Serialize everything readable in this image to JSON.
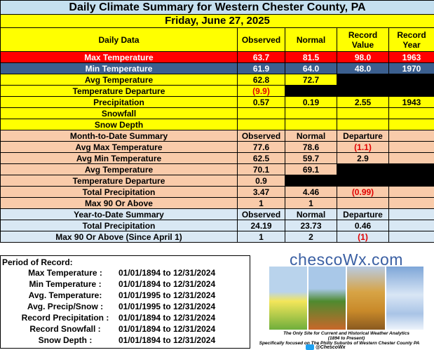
{
  "title": "Daily Climate Summary for Western Chester County, PA",
  "date": "Friday, June 27, 2025",
  "daily": {
    "headers": {
      "label": "Daily Data",
      "observed": "Observed",
      "normal": "Normal",
      "record_value": "Record Value",
      "record_year": "Record Year"
    },
    "max_temp": {
      "label": "Max Temperature",
      "observed": "63.7",
      "normal": "81.5",
      "record_value": "98.0",
      "record_year": "1963"
    },
    "min_temp": {
      "label": "Min Temperature",
      "observed": "61.9",
      "normal": "64.0",
      "record_value": "48.0",
      "record_year": "1970"
    },
    "avg_temp": {
      "label": "Avg Temperature",
      "observed": "62.8",
      "normal": "72.7"
    },
    "temp_dep": {
      "label": "Temperature Departure",
      "observed": "(9.9)"
    },
    "precip": {
      "label": "Precipitation",
      "observed": "0.57",
      "normal": "0.19",
      "record_value": "2.55",
      "record_year": "1943"
    },
    "snowfall": {
      "label": "Snowfall"
    },
    "snow_depth": {
      "label": "Snow Depth"
    }
  },
  "mtd": {
    "headers": {
      "label": "Month-to-Date Summary",
      "observed": "Observed",
      "normal": "Normal",
      "departure": "Departure"
    },
    "rows": [
      {
        "label": "Avg Max Temperature",
        "observed": "77.6",
        "normal": "78.6",
        "departure": "(1.1)"
      },
      {
        "label": "Avg Min Temperature",
        "observed": "62.5",
        "normal": "59.7",
        "departure": "2.9"
      },
      {
        "label": "Avg Temperature",
        "observed": "70.1",
        "normal": "69.1",
        "departure": ""
      },
      {
        "label": "Temperature Departure",
        "observed": "0.9",
        "normal": "",
        "departure": ""
      },
      {
        "label": "Total Precipitation",
        "observed": "3.47",
        "normal": "4.46",
        "departure": "(0.99)"
      },
      {
        "label": "Max 90 Or Above",
        "observed": "1",
        "normal": "1",
        "departure": ""
      }
    ]
  },
  "ytd": {
    "headers": {
      "label": "Year-to-Date Summary",
      "observed": "Observed",
      "normal": "Normal",
      "departure": "Departure"
    },
    "rows": [
      {
        "label": "Total Precipitation",
        "observed": "24.19",
        "normal": "23.73",
        "departure": "0.46"
      },
      {
        "label": "Max 90 Or Above (Since April 1)",
        "observed": "1",
        "normal": "2",
        "departure": "(1)"
      }
    ]
  },
  "period": {
    "title": "Period of Record:",
    "rows": [
      {
        "label": "Max Temperature :",
        "range": "01/01/1894 to 12/31/2024"
      },
      {
        "label": "Min Temperature :",
        "range": "01/01/1894 to 12/31/2024"
      },
      {
        "label": "Avg. Temperature:",
        "range": "01/01/1995 to 12/31/2024"
      },
      {
        "label": "Avg. Precip/Snow :",
        "range": "01/01/1995 to 12/31/2024"
      },
      {
        "label": "Record Precipitation :",
        "range": "01/01/1894 to 12/31/2024"
      },
      {
        "label": "Record Snowfall :",
        "range": "01/01/1894 to 12/31/2024"
      },
      {
        "label": "Snow Depth :",
        "range": "01/01/1894 to 12/31/2024"
      }
    ]
  },
  "logo": {
    "brand": "chescoWx.com",
    "tagline1": "The Only Site for Current and Historical Weather Analytics",
    "tagline2": "(1894 to Present)",
    "tagline3": "Specifically focused on The Philly Suburbs of Western Chester County PA",
    "twitter": "@ChescoWx",
    "panel_colors": [
      "#6fae3c",
      "#c9672a",
      "#c98a2a",
      "#a9c4e6"
    ]
  }
}
